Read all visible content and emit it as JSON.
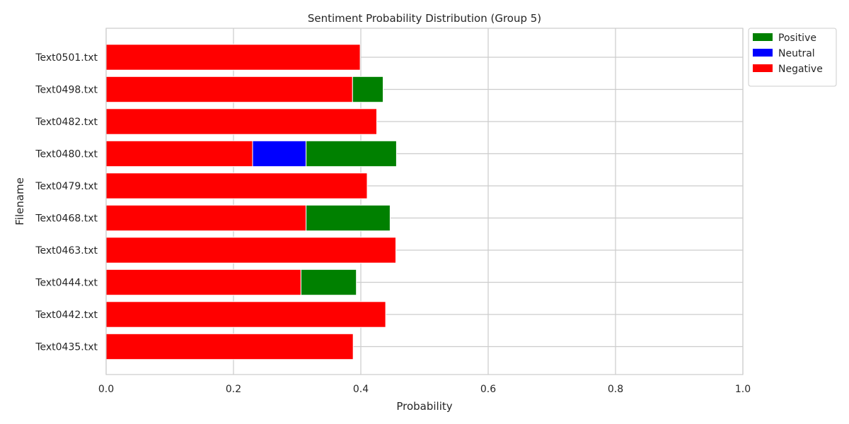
{
  "chart_data": {
    "type": "bar",
    "orientation": "horizontal",
    "stacked": true,
    "title": "Sentiment Probability Distribution (Group 5)",
    "xlabel": "Probability",
    "ylabel": "Filename",
    "xlim": [
      0,
      1.0
    ],
    "xticks": [
      "0.0",
      "0.2",
      "0.4",
      "0.6",
      "0.8",
      "1.0"
    ],
    "grid": true,
    "legend_position": "outside-top-right",
    "categories": [
      "Text0435.txt",
      "Text0442.txt",
      "Text0444.txt",
      "Text0463.txt",
      "Text0468.txt",
      "Text0479.txt",
      "Text0480.txt",
      "Text0482.txt",
      "Text0498.txt",
      "Text0501.txt"
    ],
    "series": [
      {
        "name": "Negative",
        "color": "#ff0000",
        "values": [
          0.388,
          0.439,
          0.306,
          0.455,
          0.314,
          0.41,
          0.23,
          0.425,
          0.387,
          0.399
        ]
      },
      {
        "name": "Neutral",
        "color": "#0000ff",
        "values": [
          0,
          0,
          0,
          0,
          0,
          0,
          0.084,
          0,
          0,
          0
        ]
      },
      {
        "name": "Positive",
        "color": "#008000",
        "values": [
          0,
          0,
          0.087,
          0,
          0.132,
          0,
          0.142,
          0,
          0.048,
          0
        ]
      }
    ],
    "legend_order": [
      "Positive",
      "Neutral",
      "Negative"
    ]
  }
}
